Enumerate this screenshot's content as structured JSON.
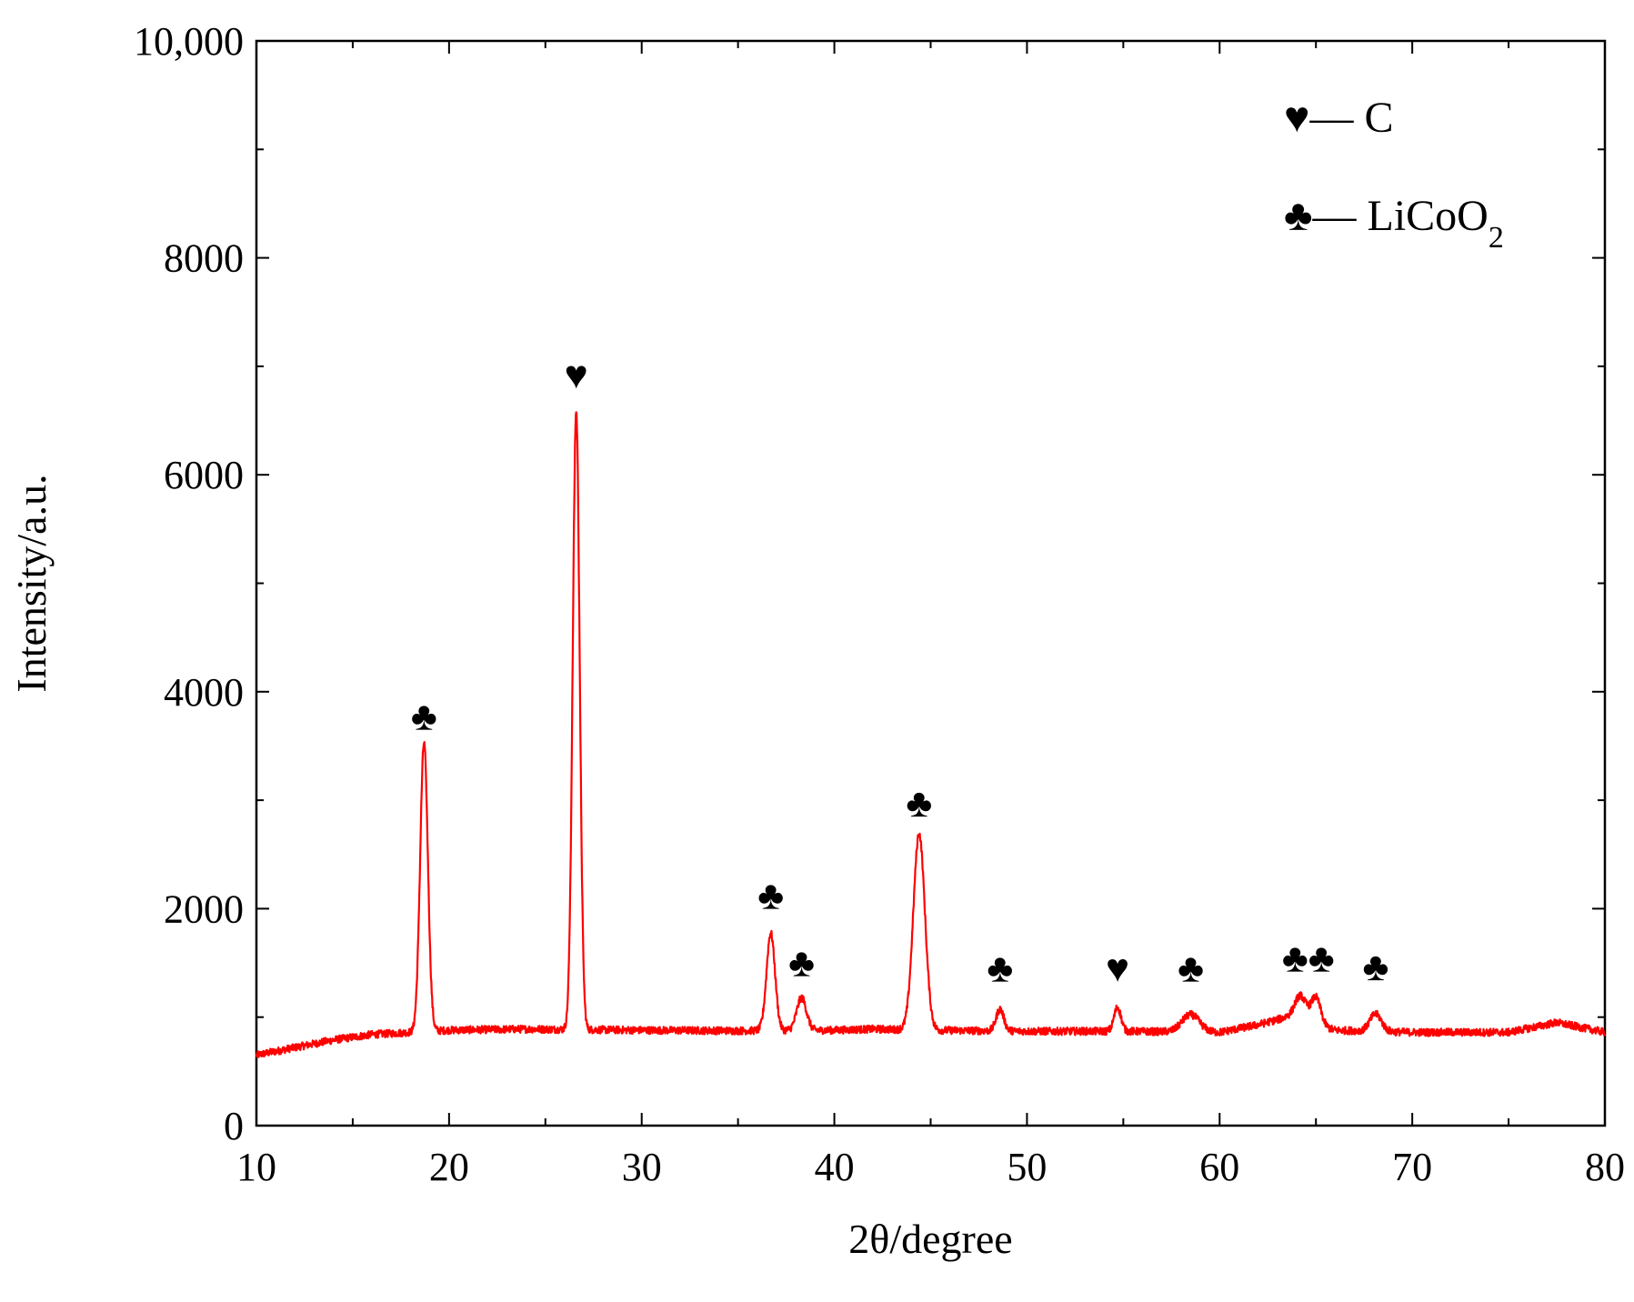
{
  "chart_data": {
    "type": "line",
    "title": "",
    "xlabel": "2θ/degree",
    "ylabel": "Intensity/a.u.",
    "xlim": [
      10,
      80
    ],
    "ylim": [
      0,
      10000
    ],
    "x_ticks": [
      10,
      20,
      30,
      40,
      50,
      60,
      70,
      80
    ],
    "x_tick_labels": [
      "10",
      "20",
      "30",
      "40",
      "50",
      "60",
      "70",
      "80"
    ],
    "y_ticks": [
      0,
      2000,
      4000,
      6000,
      8000,
      10000
    ],
    "y_tick_labels": [
      "0",
      "2000",
      "4000",
      "6000",
      "8000",
      "10,000"
    ],
    "grid": false,
    "legend_position": "top-right",
    "legend": [
      {
        "symbol": "♥",
        "dash": "–– ",
        "label": "C",
        "sub": ""
      },
      {
        "symbol": "♣",
        "dash": "–– ",
        "label": "LiCoO",
        "sub": "2"
      }
    ],
    "series": [
      {
        "color": "#ff0000",
        "baseline": [
          [
            10,
            650
          ],
          [
            12,
            720
          ],
          [
            14,
            790
          ],
          [
            16,
            840
          ],
          [
            18,
            860
          ],
          [
            20,
            880
          ],
          [
            24,
            890
          ],
          [
            30,
            880
          ],
          [
            35,
            875
          ],
          [
            40,
            880
          ],
          [
            42,
            890
          ],
          [
            45,
            880
          ],
          [
            50,
            870
          ],
          [
            55,
            870
          ],
          [
            60,
            860
          ],
          [
            62,
            930
          ],
          [
            63.5,
            1000
          ],
          [
            66,
            880
          ],
          [
            70,
            860
          ],
          [
            75,
            860
          ],
          [
            77.5,
            950
          ],
          [
            80,
            860
          ]
        ],
        "peaks": [
          {
            "x": 18.7,
            "height": 2660,
            "width": 0.2
          },
          {
            "x": 26.6,
            "height": 5700,
            "width": 0.18
          },
          {
            "x": 36.7,
            "height": 900,
            "width": 0.22
          },
          {
            "x": 38.3,
            "height": 300,
            "width": 0.25
          },
          {
            "x": 44.4,
            "height": 1810,
            "width": 0.3
          },
          {
            "x": 48.6,
            "height": 200,
            "width": 0.2
          },
          {
            "x": 54.7,
            "height": 220,
            "width": 0.18
          },
          {
            "x": 58.5,
            "height": 160,
            "width": 0.45
          },
          {
            "x": 64.2,
            "height": 230,
            "width": 0.3
          },
          {
            "x": 65.0,
            "height": 250,
            "width": 0.25
          },
          {
            "x": 68.1,
            "height": 160,
            "width": 0.3
          }
        ]
      }
    ],
    "annotations": [
      {
        "symbol": "♣",
        "x": 18.7,
        "y": 3650
      },
      {
        "symbol": "♥",
        "x": 26.6,
        "y": 6800
      },
      {
        "symbol": "♣",
        "x": 36.7,
        "y": 2000
      },
      {
        "symbol": "♣",
        "x": 38.3,
        "y": 1380
      },
      {
        "symbol": "♣",
        "x": 44.4,
        "y": 2850
      },
      {
        "symbol": "♣",
        "x": 48.6,
        "y": 1330
      },
      {
        "symbol": "♥",
        "x": 54.7,
        "y": 1330
      },
      {
        "symbol": "♣",
        "x": 58.5,
        "y": 1330
      },
      {
        "symbol": "♣♣",
        "x": 64.6,
        "y": 1420
      },
      {
        "symbol": "♣",
        "x": 68.1,
        "y": 1340
      }
    ]
  }
}
